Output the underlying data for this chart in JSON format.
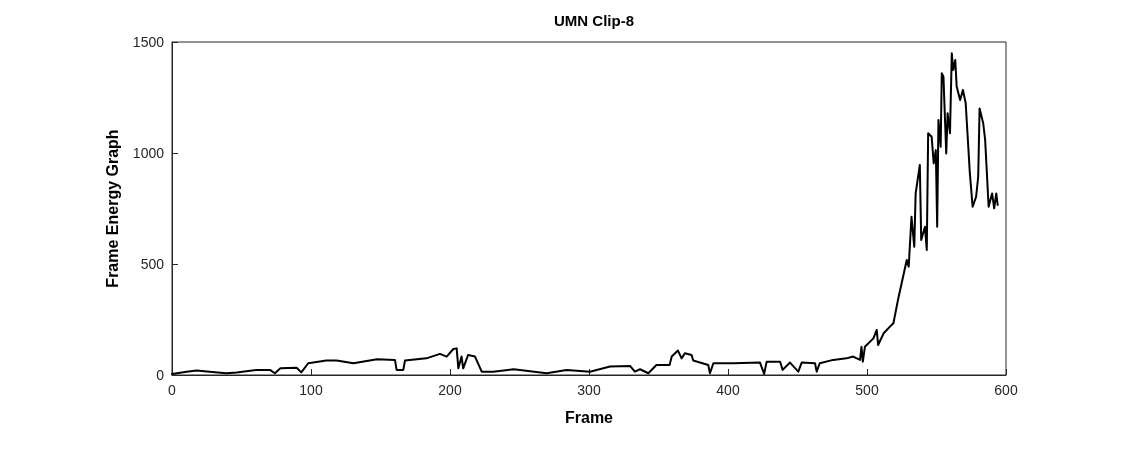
{
  "chart_data": {
    "type": "line",
    "title": "UMN Clip-8",
    "xlabel": "Frame",
    "ylabel": "Frame Energy Graph",
    "xlim": [
      0,
      600
    ],
    "xticks": [
      0,
      100,
      200,
      300,
      400,
      500,
      600
    ],
    "ylim": [
      0,
      1500
    ],
    "yticks": [
      0,
      500,
      1000,
      1500
    ],
    "grid": false,
    "marker": "none",
    "line_style": "solid",
    "x": [
      0,
      10.5,
      17.7,
      27,
      39,
      46.5,
      61,
      70.5,
      74,
      78,
      89.7,
      93,
      98,
      111,
      118.5,
      130.5,
      147.5,
      160.4,
      161.6,
      166.4,
      167.6,
      183,
      192.8,
      197.6,
      202.4,
      204.8,
      206,
      208.3,
      209.5,
      213,
      218,
      222.8,
      231,
      245.7,
      250.3,
      269.5,
      283.9,
      300.7,
      315.1,
      329.5,
      333,
      336.7,
      342.7,
      348.5,
      358,
      359.5,
      364,
      366.6,
      369,
      373.8,
      375,
      385.8,
      387,
      389.5,
      403.8,
      423,
      426,
      427.8,
      437.5,
      439.3,
      444.6,
      450.6,
      453,
      462.6,
      463.8,
      466,
      475.7,
      485.3,
      490,
      495,
      496,
      497,
      498.5,
      504.6,
      507,
      508,
      512,
      516.5,
      519,
      522.5,
      528.6,
      530,
      532,
      534,
      535,
      538,
      539,
      541.7,
      543,
      544,
      546.5,
      548,
      549.5,
      550.5,
      551.4,
      553,
      553.8,
      555,
      557,
      558,
      559.7,
      561,
      562,
      563.5,
      564.5,
      567,
      569,
      571,
      574,
      576,
      578.5,
      580,
      581,
      583.6,
      585,
      587.5,
      590,
      591.5,
      593,
      594
    ],
    "series": [
      {
        "color": "#000000",
        "values": [
          5,
          15,
          20,
          15,
          8,
          11,
          23,
          23,
          8,
          30,
          33,
          12,
          53,
          65,
          65,
          53,
          71,
          68,
          23,
          23,
          65,
          75,
          95,
          83,
          117,
          120,
          30,
          83,
          30,
          90,
          83,
          15,
          15,
          26,
          23,
          8,
          23,
          15,
          38,
          41,
          15,
          26,
          8,
          45,
          45,
          83,
          110,
          75,
          98,
          90,
          65,
          45,
          8,
          53,
          53,
          56,
          5,
          60,
          60,
          23,
          56,
          15,
          56,
          53,
          15,
          53,
          68,
          75,
          83,
          68,
          127,
          60,
          127,
          165,
          203,
          135,
          188,
          218,
          233,
          345,
          518,
          488,
          713,
          578,
          818,
          946,
          608,
          668,
          563,
          1089,
          1073,
          953,
          1013,
          668,
          1149,
          1028,
          1359,
          1344,
          998,
          1179,
          1089,
          1449,
          1374,
          1419,
          1299,
          1239,
          1284,
          1224,
          908,
          758,
          803,
          893,
          1201,
          1134,
          1059,
          758,
          818,
          751,
          818,
          766
        ]
      }
    ]
  }
}
